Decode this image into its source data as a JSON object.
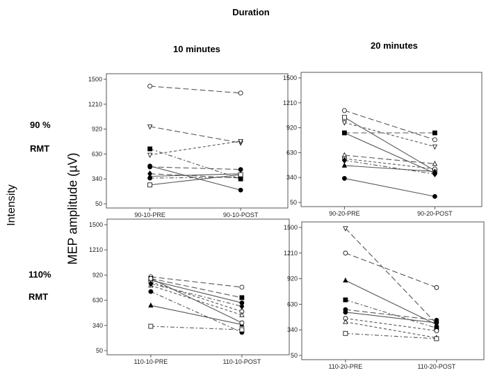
{
  "labels": {
    "title": "Duration",
    "col_10": "10 minutes",
    "col_20": "20 minutes",
    "row_90_a": "90 %",
    "row_90_b": "RMT",
    "row_110_a": "110%",
    "row_110_b": "RMT",
    "intensity": "Intensity",
    "ylabel": "MEP amplitude (µV)"
  },
  "chart_data": [
    {
      "type": "line",
      "panel": "90-10",
      "categories": [
        "90-10-PRE",
        "90-10-POST"
      ],
      "yticks": [
        50,
        340,
        630,
        920,
        1210,
        1500
      ],
      "ylim": [
        50,
        1500
      ],
      "grid": false,
      "series": [
        {
          "values": [
            1420,
            1340
          ],
          "marker": "open-circle",
          "dash": "8 4"
        },
        {
          "values": [
            950,
            760
          ],
          "marker": "open-triangle-down",
          "dash": "8 4"
        },
        {
          "values": [
            690,
            340
          ],
          "marker": "square",
          "dash": "6 3 2 3"
        },
        {
          "values": [
            620,
            780
          ],
          "marker": "open-triangle-down",
          "dash": "4 3"
        },
        {
          "values": [
            480,
            450
          ],
          "marker": "circle",
          "dash": "8 4"
        },
        {
          "values": [
            400,
            350
          ],
          "marker": "diamond",
          "dash": "8 4"
        },
        {
          "values": [
            370,
            400
          ],
          "marker": "triangle",
          "dash": ""
        },
        {
          "values": [
            350,
            360
          ],
          "marker": "circle",
          "dash": "6 3 2 3"
        },
        {
          "values": [
            270,
            390
          ],
          "marker": "open-square",
          "dash": ""
        },
        {
          "values": [
            490,
            210
          ],
          "marker": "circle",
          "dash": ""
        }
      ]
    },
    {
      "type": "line",
      "panel": "90-20",
      "categories": [
        "90-20-PRE",
        "90-20-POST"
      ],
      "yticks": [
        50,
        340,
        630,
        920,
        1210,
        1500
      ],
      "ylim": [
        50,
        1500
      ],
      "grid": false,
      "series": [
        {
          "values": [
            1120,
            780
          ],
          "marker": "open-circle",
          "dash": "8 4"
        },
        {
          "values": [
            1040,
            420
          ],
          "marker": "open-square",
          "dash": ""
        },
        {
          "values": [
            980,
            700
          ],
          "marker": "open-triangle-down",
          "dash": "4 3"
        },
        {
          "values": [
            860,
            860
          ],
          "marker": "square",
          "dash": "8 4"
        },
        {
          "values": [
            860,
            390
          ],
          "marker": "circle",
          "dash": ""
        },
        {
          "values": [
            600,
            500
          ],
          "marker": "open-triangle",
          "dash": "8 4"
        },
        {
          "values": [
            560,
            440
          ],
          "marker": "open-circle",
          "dash": "4 3"
        },
        {
          "values": [
            540,
            380
          ],
          "marker": "diamond",
          "dash": "6 3 2 3"
        },
        {
          "values": [
            480,
            410
          ],
          "marker": "triangle",
          "dash": ""
        },
        {
          "values": [
            330,
            120
          ],
          "marker": "circle",
          "dash": ""
        }
      ]
    },
    {
      "type": "line",
      "panel": "110-10",
      "categories": [
        "110-10-PRE",
        "110-10-POST"
      ],
      "yticks": [
        50,
        340,
        630,
        920,
        1210,
        1500
      ],
      "ylim": [
        50,
        1500
      ],
      "grid": false,
      "series": [
        {
          "values": [
            900,
            780
          ],
          "marker": "open-circle",
          "dash": "8 4"
        },
        {
          "values": [
            880,
            660
          ],
          "marker": "square",
          "dash": "8 4"
        },
        {
          "values": [
            860,
            600
          ],
          "marker": "circle",
          "dash": ""
        },
        {
          "values": [
            840,
            500
          ],
          "marker": "open-circle",
          "dash": "4 3"
        },
        {
          "values": [
            800,
            460
          ],
          "marker": "open-triangle",
          "dash": "4 3"
        },
        {
          "values": [
            820,
            560
          ],
          "marker": "diamond",
          "dash": "6 3 2 3"
        },
        {
          "values": [
            730,
            260
          ],
          "marker": "circle",
          "dash": "6 3 2 3"
        },
        {
          "values": [
            570,
            350
          ],
          "marker": "triangle",
          "dash": ""
        },
        {
          "values": [
            330,
            290
          ],
          "marker": "open-square",
          "dash": "6 3 2 3"
        },
        {
          "values": [
            880,
            370
          ],
          "marker": "open-circle",
          "dash": ""
        }
      ]
    },
    {
      "type": "line",
      "panel": "110-20",
      "categories": [
        "110-20-PRE",
        "110-20-POST"
      ],
      "yticks": [
        50,
        340,
        630,
        920,
        1210,
        1500
      ],
      "ylim": [
        50,
        1500
      ],
      "grid": false,
      "series": [
        {
          "values": [
            1490,
            410
          ],
          "marker": "open-triangle-down",
          "dash": "8 4"
        },
        {
          "values": [
            1210,
            820
          ],
          "marker": "open-circle",
          "dash": "8 4"
        },
        {
          "values": [
            900,
            400
          ],
          "marker": "triangle",
          "dash": ""
        },
        {
          "values": [
            680,
            360
          ],
          "marker": "square",
          "dash": "6 3 2 3"
        },
        {
          "values": [
            570,
            450
          ],
          "marker": "circle",
          "dash": "8 4"
        },
        {
          "values": [
            540,
            420
          ],
          "marker": "circle",
          "dash": ""
        },
        {
          "values": [
            470,
            330
          ],
          "marker": "open-circle",
          "dash": "4 3"
        },
        {
          "values": [
            430,
            250
          ],
          "marker": "open-triangle",
          "dash": "4 3"
        },
        {
          "values": [
            300,
            240
          ],
          "marker": "open-square",
          "dash": "6 3 2 3"
        }
      ]
    }
  ]
}
